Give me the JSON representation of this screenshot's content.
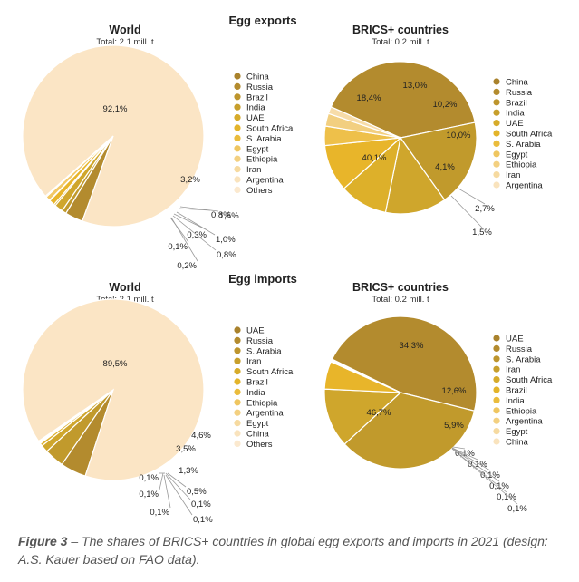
{
  "section_titles": [
    "Egg exports",
    "Egg imports"
  ],
  "caption": {
    "label": "Figure 3",
    "text": " – The shares of BRICS+ countries in global egg exports and imports in 2021 (design: A.S. Kauer based on FAO data)."
  },
  "chart_data": [
    {
      "type": "pie",
      "title": "World",
      "subtitle": "Total: 2.1 mill. t",
      "legend": [
        "China",
        "Russia",
        "Brazil",
        "India",
        "UAE",
        "South Africa",
        "S. Arabia",
        "Egypt",
        "Ethiopia",
        "Iran",
        "Argentina",
        "Others"
      ],
      "slices": [
        {
          "name": "China",
          "value": 3.2,
          "label": "3,2%",
          "color": "#b38b2e"
        },
        {
          "name": "Russia",
          "value": 0.8,
          "label": "0,8%",
          "color": "#c19a2c"
        },
        {
          "name": "Brazil",
          "value": 1.5,
          "label": "1,5%",
          "color": "#cfa62c"
        },
        {
          "name": "India",
          "value": 0.3,
          "label": "0,3%",
          "color": "#ddb02a"
        },
        {
          "name": "UAE",
          "value": 1.0,
          "label": "1,0%",
          "color": "#e8b52a"
        },
        {
          "name": "South Africa",
          "value": 0.1,
          "label": "0,1%",
          "color": "#eec04a"
        },
        {
          "name": "S. Arabia",
          "value": 0.8,
          "label": "0,8%",
          "color": "#f2c865"
        },
        {
          "name": "Egypt",
          "value": 0.2,
          "label": "0,2%",
          "color": "#f5d27e"
        },
        {
          "name": "Others",
          "value": 92.1,
          "label": "92,1%",
          "color": "#fbe5c5"
        }
      ]
    },
    {
      "type": "pie",
      "title": "BRICS+ countries",
      "subtitle": "Total: 0.2 mill. t",
      "legend": [
        "China",
        "Russia",
        "Brazil",
        "India",
        "UAE",
        "South Africa",
        "S. Arabia",
        "Egypt",
        "Ethiopia",
        "Iran",
        "Argentina"
      ],
      "slices": [
        {
          "name": "China",
          "value": 40.1,
          "label": "40,1%",
          "color": "#b38b2e"
        },
        {
          "name": "Russia",
          "value": 18.4,
          "label": "18,4%",
          "color": "#c19a2c"
        },
        {
          "name": "Brazil",
          "value": 13.0,
          "label": "13,0%",
          "color": "#cfa62c"
        },
        {
          "name": "India",
          "value": 10.2,
          "label": "10,2%",
          "color": "#ddb02a"
        },
        {
          "name": "UAE",
          "value": 10.0,
          "label": "10,0%",
          "color": "#e8b52a"
        },
        {
          "name": "South Africa",
          "value": 4.1,
          "label": "4,1%",
          "color": "#eec04a"
        },
        {
          "name": "S. Arabia",
          "value": 2.7,
          "label": "2,7%",
          "color": "#f2cf80"
        },
        {
          "name": "Egypt",
          "value": 1.5,
          "label": "1,5%",
          "color": "#f7dca8"
        }
      ]
    },
    {
      "type": "pie",
      "title": "World",
      "subtitle": "Total: 2.1 mill. t",
      "legend": [
        "UAE",
        "Russia",
        "S. Arabia",
        "Iran",
        "South Africa",
        "Brazil",
        "India",
        "Ethiopia",
        "Argentina",
        "Egypt",
        "China",
        "Others"
      ],
      "slices": [
        {
          "name": "UAE",
          "value": 4.6,
          "label": "4,6%",
          "color": "#b38b2e"
        },
        {
          "name": "Russia",
          "value": 3.5,
          "label": "3,5%",
          "color": "#c19a2c"
        },
        {
          "name": "S. Arabia",
          "value": 1.3,
          "label": "1,3%",
          "color": "#cfa62c"
        },
        {
          "name": "Iran",
          "value": 0.5,
          "label": "0,5%",
          "color": "#ddb02a"
        },
        {
          "name": "South Africa",
          "value": 0.1,
          "label": "0,1%",
          "color": "#e8b52a"
        },
        {
          "name": "Brazil",
          "value": 0.1,
          "label": "0,1%",
          "color": "#eec04a"
        },
        {
          "name": "India",
          "value": 0.1,
          "label": "0,1%",
          "color": "#f2c865"
        },
        {
          "name": "Ethiopia",
          "value": 0.1,
          "label": "0,1%",
          "color": "#f5d27e"
        },
        {
          "name": "Argentina",
          "value": 0.1,
          "label": "0,1%",
          "color": "#f7dca0"
        },
        {
          "name": "Others",
          "value": 89.5,
          "label": "89,5%",
          "color": "#fbe5c5"
        }
      ]
    },
    {
      "type": "pie",
      "title": "BRICS+ countries",
      "subtitle": "Total: 0.2 mill. t",
      "legend": [
        "UAE",
        "Russia",
        "S. Arabia",
        "Iran",
        "South Africa",
        "Brazil",
        "India",
        "Ethiopia",
        "Argentina",
        "Egypt",
        "China"
      ],
      "slices": [
        {
          "name": "UAE",
          "value": 46.7,
          "label": "46,7%",
          "color": "#b38b2e"
        },
        {
          "name": "Russia",
          "value": 34.3,
          "label": "34,3%",
          "color": "#c19a2c"
        },
        {
          "name": "S. Arabia",
          "value": 12.6,
          "label": "12,6%",
          "color": "#cfa62c"
        },
        {
          "name": "Iran",
          "value": 5.9,
          "label": "5,9%",
          "color": "#e8b52a"
        },
        {
          "name": "South Africa",
          "value": 0.1,
          "label": "0,1%",
          "color": "#eec04a"
        },
        {
          "name": "Brazil",
          "value": 0.1,
          "label": "0,1%",
          "color": "#f2c865"
        },
        {
          "name": "India",
          "value": 0.1,
          "label": "0,1%",
          "color": "#f5d27e"
        },
        {
          "name": "Ethiopia",
          "value": 0.1,
          "label": "0,1%",
          "color": "#f7dca0"
        },
        {
          "name": "Argentina",
          "value": 0.1,
          "label": "0,1%",
          "color": "#f9e2b4"
        },
        {
          "name": "Egypt",
          "value": 0.1,
          "label": "0,1%",
          "color": "#fbe9c8"
        }
      ]
    }
  ]
}
